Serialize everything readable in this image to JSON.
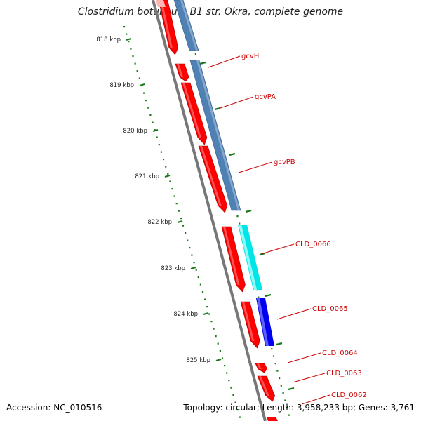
{
  "title": "Clostridium botulinum B1 str. Okra, complete genome",
  "ticks": [
    "818 kbp",
    "819 kbp",
    "820 kbp",
    "821 kbp",
    "822 kbp",
    "823 kbp",
    "824 kbp",
    "825 kbp"
  ],
  "gene_labels": [
    "gcvH",
    "gcvPA",
    "gcvPB",
    "CLD_0066",
    "CLD_0065",
    "CLD_0064",
    "CLD_0063",
    "CLD_0062"
  ],
  "colors": {
    "cds": "#ff0000",
    "cds_shade": "#a30000",
    "match_steel": "#4f81b4",
    "match_cyan": "#00e6e6",
    "match_blue": "#0000ee",
    "backbone": "#777777",
    "ticks": "#1a7a1a",
    "label_text": "#cc0000"
  },
  "footer": {
    "accession": "Accession: NC_010516",
    "stats": "Topology: circular; Length: 3,958,233 bp; Genes: 3,761"
  }
}
